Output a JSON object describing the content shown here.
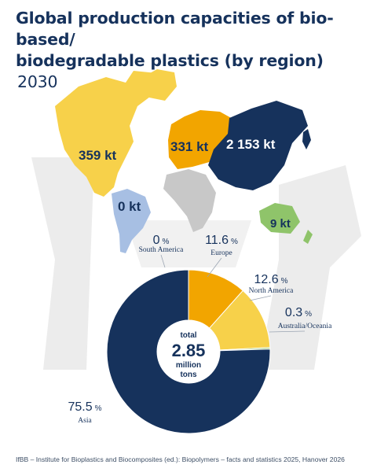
{
  "title": {
    "line1": "Global production capacities of bio-based/",
    "line2": "biodegradable plastics (by region)",
    "year": "2030"
  },
  "colors": {
    "asia": "#16325c",
    "europe": "#f2a500",
    "north_america": "#f7d14a",
    "south_america": "#a7bfe3",
    "australia": "#8fc46a",
    "africa": "#c8c8c8",
    "background_shape": "#ececec"
  },
  "map_labels": {
    "north_america": "359 kt",
    "europe": "331 kt",
    "asia": "2 153 kt",
    "south_america": "0 kt",
    "australia": "9 kt"
  },
  "chart_data": {
    "type": "pie",
    "series": [
      {
        "label": "Asia",
        "value": 75.5,
        "display": "75.5"
      },
      {
        "label": "Europe",
        "value": 11.6,
        "display": "11.6"
      },
      {
        "label": "North America",
        "value": 12.6,
        "display": "12.6"
      },
      {
        "label": "Australia/Oceania",
        "value": 0.3,
        "display": "0.3"
      },
      {
        "label": "South America",
        "value": 0,
        "display": "0"
      }
    ],
    "unit": "%",
    "center": {
      "top": "total",
      "value": "2.85",
      "bottom1": "million",
      "bottom2": "tons"
    }
  },
  "footer": "IfBB – Institute for Bioplastics and Biocomposites (ed.): Biopolymers – facts and statistics 2025, Hanover 2026"
}
